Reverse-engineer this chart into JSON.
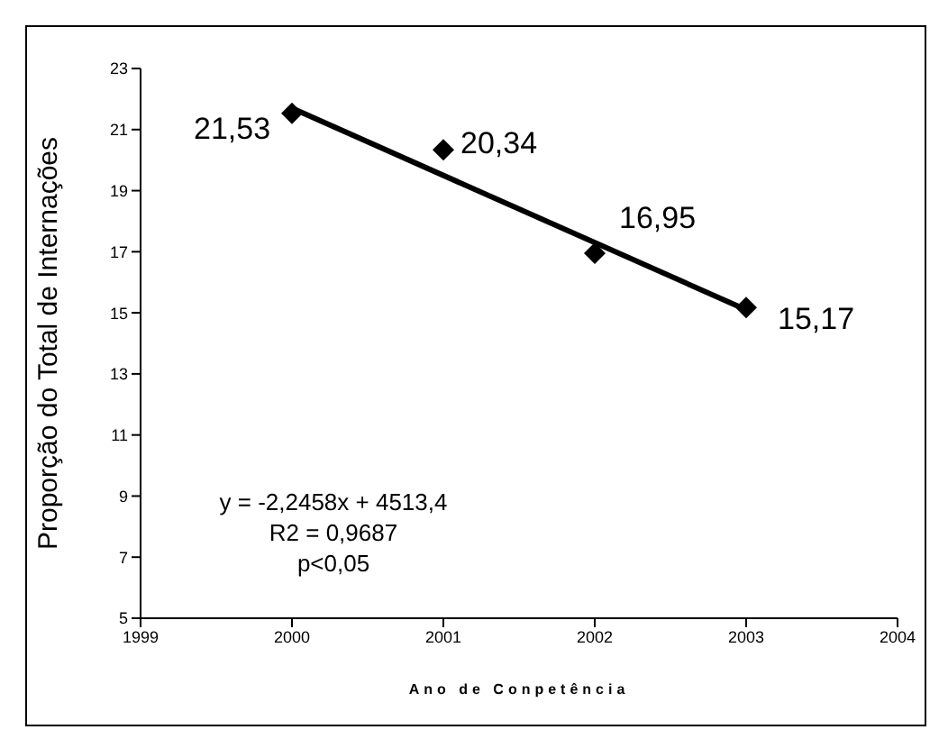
{
  "chart_data": {
    "type": "scatter",
    "xlabel": "Ano de Conpetência",
    "ylabel": "Proporção do Total de Internações",
    "x": [
      2000,
      2001,
      2002,
      2003
    ],
    "series": [
      {
        "color": "#000000",
        "marker": "diamond",
        "values": [
          21.53,
          20.34,
          16.95,
          15.17
        ],
        "value_labels": [
          "21,53",
          "20,34",
          "16,95",
          "15,17"
        ]
      },
      {
        "type": "line",
        "color": "#000000",
        "marker": "none",
        "x": [
          2000,
          2003
        ],
        "values": [
          21.7,
          15.1
        ]
      }
    ],
    "xlim": [
      1999,
      2004
    ],
    "xticks": [
      1999,
      2000,
      2001,
      2002,
      2003,
      2004
    ],
    "ylim": [
      5,
      23
    ],
    "yticks": [
      5,
      7,
      9,
      11,
      13,
      15,
      17,
      19,
      21,
      23
    ],
    "grid": false,
    "legend": false,
    "annotations": [
      "y = -2,2458x + 4513,4",
      "R2 = 0,9687",
      "p<0,05"
    ]
  }
}
